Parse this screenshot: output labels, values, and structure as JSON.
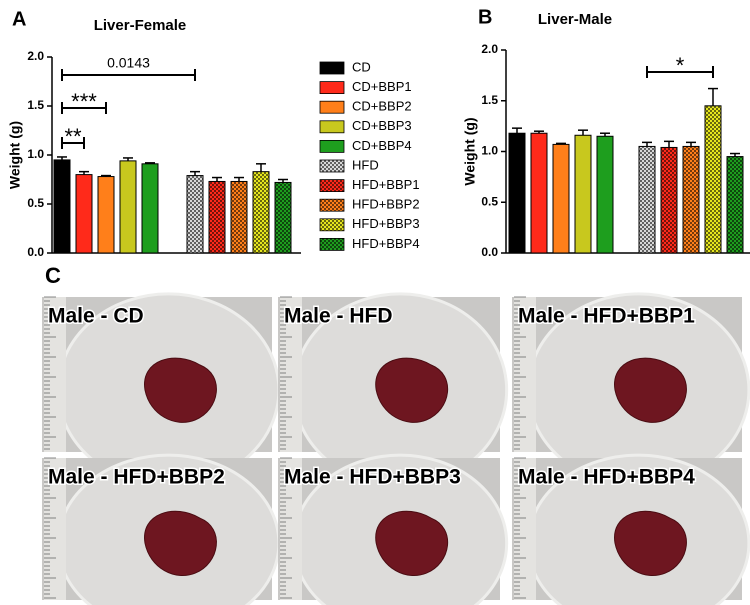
{
  "chart_data": [
    {
      "type": "bar",
      "panel": "A",
      "title": "Liver-Female",
      "ylabel": "Weight (g)",
      "ylim": [
        0,
        2
      ],
      "yticks": [
        {
          "value": 0,
          "label": "0.0"
        },
        {
          "value": 0.5,
          "label": "0.5"
        },
        {
          "value": 1,
          "label": "1.0"
        },
        {
          "value": 1.5,
          "label": "1.5"
        },
        {
          "value": 2,
          "label": "2.0"
        }
      ],
      "series": [
        {
          "name": "CD",
          "color": "#000000",
          "values": [
            0.95
          ],
          "errors": [
            0.03
          ]
        },
        {
          "name": "CD+BBP1",
          "color": "#ff2a1a",
          "values": [
            0.8
          ],
          "errors": [
            0.03
          ]
        },
        {
          "name": "CD+BBP2",
          "color": "#ff7f1a",
          "values": [
            0.78
          ],
          "errors": [
            0.01
          ]
        },
        {
          "name": "CD+BBP3",
          "color": "#c8c81e",
          "values": [
            0.94
          ],
          "errors": [
            0.03
          ]
        },
        {
          "name": "CD+BBP4",
          "color": "#1e9e1e",
          "values": [
            0.91
          ],
          "errors": [
            0.01
          ]
        },
        {
          "name": "HFD",
          "color": "#d8d8d8",
          "pattern": "checker",
          "values": [
            0.79
          ],
          "errors": [
            0.04
          ]
        },
        {
          "name": "HFD+BBP1",
          "color": "#ff2a1a",
          "pattern": "checker",
          "values": [
            0.73
          ],
          "errors": [
            0.04
          ]
        },
        {
          "name": "HFD+BBP2",
          "color": "#ff7f1a",
          "pattern": "checker",
          "values": [
            0.73
          ],
          "errors": [
            0.04
          ]
        },
        {
          "name": "HFD+BBP3",
          "color": "#e6e61e",
          "pattern": "checker",
          "values": [
            0.83
          ],
          "errors": [
            0.08
          ]
        },
        {
          "name": "HFD+BBP4",
          "color": "#1e9e1e",
          "pattern": "checker",
          "values": [
            0.72
          ],
          "errors": [
            0.03
          ]
        }
      ],
      "annotations": [
        {
          "label": "0.0143",
          "between": [
            0,
            5
          ]
        },
        {
          "label": "***",
          "between": [
            0,
            2
          ]
        },
        {
          "label": "**",
          "between": [
            0,
            1
          ]
        }
      ]
    },
    {
      "type": "bar",
      "panel": "B",
      "title": "Liver-Male",
      "ylabel": "Weight (g)",
      "ylim": [
        0,
        2
      ],
      "yticks": [
        {
          "value": 0,
          "label": "0.0"
        },
        {
          "value": 0.5,
          "label": "0.5"
        },
        {
          "value": 1,
          "label": "1.0"
        },
        {
          "value": 1.5,
          "label": "1.5"
        },
        {
          "value": 2,
          "label": "2.0"
        }
      ],
      "series": [
        {
          "color": "#000000",
          "values": [
            1.18
          ],
          "errors": [
            0.05
          ]
        },
        {
          "color": "#ff2a1a",
          "values": [
            1.18
          ],
          "errors": [
            0.02
          ]
        },
        {
          "color": "#ff7f1a",
          "values": [
            1.07
          ],
          "errors": [
            0.01
          ]
        },
        {
          "color": "#c8c81e",
          "values": [
            1.16
          ],
          "errors": [
            0.05
          ]
        },
        {
          "color": "#1e9e1e",
          "values": [
            1.15
          ],
          "errors": [
            0.03
          ]
        },
        {
          "color": "#d8d8d8",
          "pattern": "checker",
          "values": [
            1.05
          ],
          "errors": [
            0.04
          ]
        },
        {
          "color": "#ff2a1a",
          "pattern": "checker",
          "values": [
            1.04
          ],
          "errors": [
            0.06
          ]
        },
        {
          "color": "#ff7f1a",
          "pattern": "checker",
          "values": [
            1.05
          ],
          "errors": [
            0.04
          ]
        },
        {
          "color": "#e6e61e",
          "pattern": "checker",
          "values": [
            1.45
          ],
          "errors": [
            0.17
          ]
        },
        {
          "color": "#1e9e1e",
          "pattern": "checker",
          "values": [
            0.95
          ],
          "errors": [
            0.03
          ]
        }
      ],
      "annotations": [
        {
          "label": "*",
          "between": [
            5,
            8
          ]
        }
      ]
    }
  ],
  "photos": {
    "panel": "C",
    "labels": [
      "Male - CD",
      "Male - HFD",
      "Male - HFD+BBP1",
      "Male - HFD+BBP2",
      "Male - HFD+BBP3",
      "Male - HFD+BBP4"
    ]
  }
}
